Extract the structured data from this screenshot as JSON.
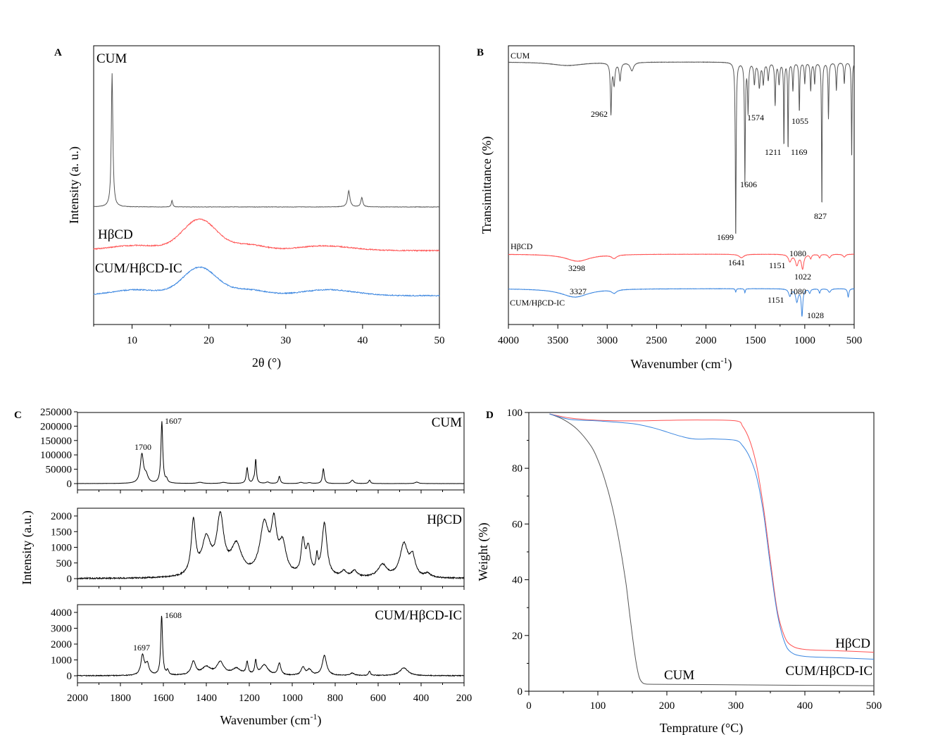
{
  "chart_data": [
    {
      "panel": "A",
      "type": "line",
      "xlabel": "2θ (°)",
      "ylabel": "Intensity (a. u.)",
      "xlim": [
        5,
        50
      ],
      "xticks": [
        10,
        20,
        30,
        40,
        50
      ],
      "yticks_shown": false,
      "series": [
        {
          "name": "CUM",
          "color": "#555555",
          "baseline": 0,
          "peaks": [
            [
              7.4,
              100,
              0.12
            ],
            [
              15.2,
              5,
              0.1
            ],
            [
              38.2,
              12,
              0.18
            ],
            [
              39.9,
              7,
              0.15
            ]
          ],
          "broad": []
        },
        {
          "name": "HβCD",
          "color": "#ff5252",
          "baseline": 0,
          "peaks": [],
          "broad": [
            [
              10.5,
              3.5,
              3.5
            ],
            [
              18.8,
              21,
              2.2
            ],
            [
              25,
              4,
              2.2
            ],
            [
              35,
              3.2,
              3.5
            ]
          ]
        },
        {
          "name": "CUM/HβCD-IC",
          "color": "#3b86e0",
          "baseline": 0,
          "peaks": [],
          "broad": [
            [
              10.5,
              4,
              3.2
            ],
            [
              18.8,
              19,
              2.2
            ],
            [
              25,
              4,
              2.4
            ],
            [
              35.5,
              4,
              3.5
            ]
          ]
        }
      ]
    },
    {
      "panel": "B",
      "type": "line",
      "xlabel": "Wavenumber (cm-1)",
      "xlabel_main": "Wavenumber (cm",
      "xlabel_sup": "-1",
      "xlabel_end": ")",
      "ylabel": "Transimittance (%)",
      "xlim": [
        4000,
        500
      ],
      "xticks": [
        4000,
        3500,
        3000,
        2500,
        2000,
        1500,
        1000,
        500
      ],
      "series": [
        {
          "name": "CUM",
          "color": "#555555",
          "annotations": [
            "2962",
            "1574",
            "1055",
            "1211",
            "1169",
            "1606",
            "827",
            "1699"
          ]
        },
        {
          "name": "HβCD",
          "color": "#ff5252",
          "annotations": [
            "3298",
            "1641",
            "1151",
            "1080",
            "1022"
          ]
        },
        {
          "name": "CUM/HβCD-IC",
          "color": "#3b86e0",
          "annotations": [
            "3327",
            "1151",
            "1080",
            "1028"
          ]
        }
      ]
    },
    {
      "panel": "C",
      "type": "line",
      "xlabel": "Wavenumber (cm-1)",
      "xlabel_main": "Wavenumber (cm",
      "xlabel_sup": "-1",
      "xlabel_end": ")",
      "ylabel": "Intensity (a.u.)",
      "xlim": [
        2000,
        200
      ],
      "xticks": [
        2000,
        1800,
        1600,
        1400,
        1200,
        1000,
        800,
        600,
        400,
        200
      ],
      "subplots": [
        {
          "name": "CUM",
          "ylim": [
            0,
            250000
          ],
          "yticks": [
            "0",
            "50000",
            "100000",
            "150000",
            "200000",
            "250000"
          ],
          "annotations": [
            "1700",
            "1607"
          ],
          "peaks": [
            [
              1700,
              100000,
              9
            ],
            [
              1680,
              25000,
              10
            ],
            [
              1607,
              215000,
              5
            ],
            [
              1585,
              12000,
              5
            ],
            [
              1430,
              4000,
              15
            ],
            [
              1320,
              4000,
              15
            ],
            [
              1210,
              55000,
              5
            ],
            [
              1180,
              10000,
              5
            ],
            [
              1170,
              83000,
              4
            ],
            [
              1115,
              5000,
              8
            ],
            [
              1060,
              25000,
              5
            ],
            [
              960,
              4000,
              10
            ],
            [
              920,
              3000,
              10
            ],
            [
              855,
              52000,
              5
            ],
            [
              720,
              12000,
              8
            ],
            [
              640,
              12000,
              5
            ],
            [
              420,
              5000,
              10
            ]
          ]
        },
        {
          "name": "HβCD",
          "ylim": [
            0,
            2000
          ],
          "yticks": [
            "0",
            "500",
            "1000",
            "1500",
            "2000"
          ],
          "annotations": [],
          "peaks": [
            [
              1460,
              1700,
              12
            ],
            [
              1400,
              1150,
              25
            ],
            [
              1335,
              1800,
              20
            ],
            [
              1260,
              950,
              30
            ],
            [
              1130,
              1600,
              25
            ],
            [
              1085,
              1450,
              15
            ],
            [
              1045,
              950,
              20
            ],
            [
              950,
              1050,
              10
            ],
            [
              925,
              850,
              12
            ],
            [
              885,
              500,
              5
            ],
            [
              850,
              1700,
              14
            ],
            [
              760,
              180,
              15
            ],
            [
              710,
              200,
              15
            ],
            [
              580,
              400,
              25
            ],
            [
              480,
              1050,
              22
            ],
            [
              440,
              600,
              15
            ],
            [
              370,
              120,
              15
            ]
          ]
        },
        {
          "name": "CUM/HβCD-IC",
          "ylim": [
            0,
            4000
          ],
          "yticks": [
            "0",
            "1000",
            "2000",
            "3000",
            "4000"
          ],
          "annotations": [
            "1697",
            "1608"
          ],
          "peaks": [
            [
              1697,
              1250,
              9
            ],
            [
              1675,
              700,
              10
            ],
            [
              1608,
              3750,
              5
            ],
            [
              1580,
              300,
              5
            ],
            [
              1460,
              850,
              12
            ],
            [
              1400,
              500,
              25
            ],
            [
              1335,
              800,
              20
            ],
            [
              1260,
              400,
              25
            ],
            [
              1210,
              750,
              6
            ],
            [
              1170,
              850,
              5
            ],
            [
              1130,
              650,
              20
            ],
            [
              1060,
              750,
              8
            ],
            [
              950,
              500,
              10
            ],
            [
              920,
              350,
              12
            ],
            [
              850,
              1250,
              12
            ],
            [
              720,
              150,
              12
            ],
            [
              640,
              280,
              5
            ],
            [
              480,
              500,
              22
            ]
          ]
        }
      ]
    },
    {
      "panel": "D",
      "type": "line",
      "xlabel": "Temprature (°C)",
      "ylabel": "Weight (%)",
      "xlim": [
        0,
        500
      ],
      "ylim": [
        0,
        100
      ],
      "xticks": [
        0,
        100,
        200,
        300,
        400,
        500
      ],
      "yticks": [
        0,
        20,
        40,
        60,
        80,
        100
      ],
      "series": [
        {
          "name": "CUM",
          "color": "#555555",
          "x": [
            30,
            50,
            70,
            90,
            100,
            110,
            120,
            130,
            140,
            145,
            150,
            155,
            160,
            165,
            170,
            180,
            250,
            350,
            500
          ],
          "y": [
            99.5,
            97.5,
            94,
            88,
            83,
            76,
            67,
            55,
            40,
            30,
            20,
            11,
            5,
            3,
            2.6,
            2.5,
            2.4,
            2.2,
            2
          ]
        },
        {
          "name": "HβCD",
          "color": "#ff5252",
          "x": [
            30,
            60,
            100,
            150,
            200,
            250,
            300,
            310,
            320,
            330,
            340,
            350,
            360,
            370,
            380,
            400,
            450,
            500
          ],
          "y": [
            99.5,
            98,
            97.2,
            97,
            97.2,
            97.3,
            97,
            95,
            90,
            81,
            66,
            47,
            29,
            20,
            16.5,
            15,
            14.5,
            14
          ]
        },
        {
          "name": "CUM/HβCD-IC",
          "color": "#3b86e0",
          "x": [
            30,
            60,
            100,
            150,
            180,
            200,
            220,
            240,
            270,
            300,
            310,
            320,
            330,
            340,
            350,
            360,
            370,
            380,
            400,
            450,
            500
          ],
          "y": [
            99.5,
            97.5,
            97,
            96,
            94.5,
            93,
            91.5,
            90.5,
            90.5,
            90,
            88,
            84,
            77,
            64,
            45,
            28,
            18,
            14,
            12.5,
            12,
            11.5
          ]
        }
      ]
    }
  ],
  "labels": {
    "a": "A",
    "b": "B",
    "c": "C",
    "d": "D"
  }
}
